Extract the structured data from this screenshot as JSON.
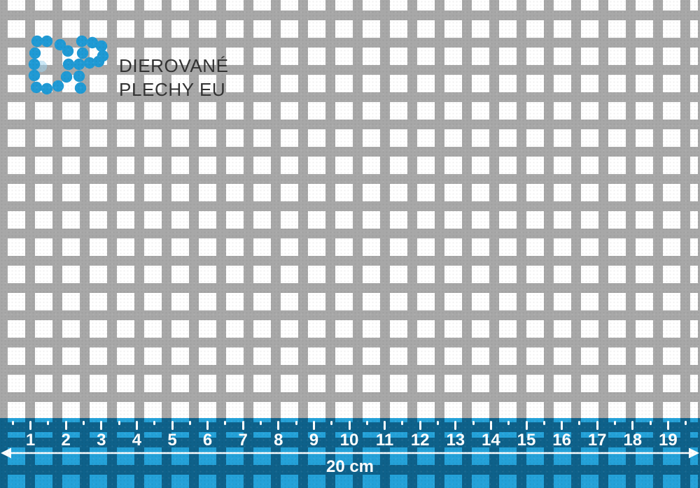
{
  "brand": {
    "line1": "DIEROVANÉ",
    "line2": "PLECHY EU",
    "dot_color": "#1f9ad5",
    "dot_ghost_color": "#9fd4ef",
    "text_color": "#323232"
  },
  "sheet": {
    "hole_color": "#ffffff",
    "web_color": "#a8a8a8"
  },
  "ruler": {
    "numbers": [
      "1",
      "2",
      "3",
      "4",
      "5",
      "6",
      "7",
      "8",
      "9",
      "10",
      "11",
      "12",
      "13",
      "14",
      "15",
      "16",
      "17",
      "18",
      "19"
    ],
    "length_label": "20 cm",
    "band_hole_color": "#24a2d9",
    "band_web_color": "#0e618a",
    "tick_color": "#ffffff"
  }
}
